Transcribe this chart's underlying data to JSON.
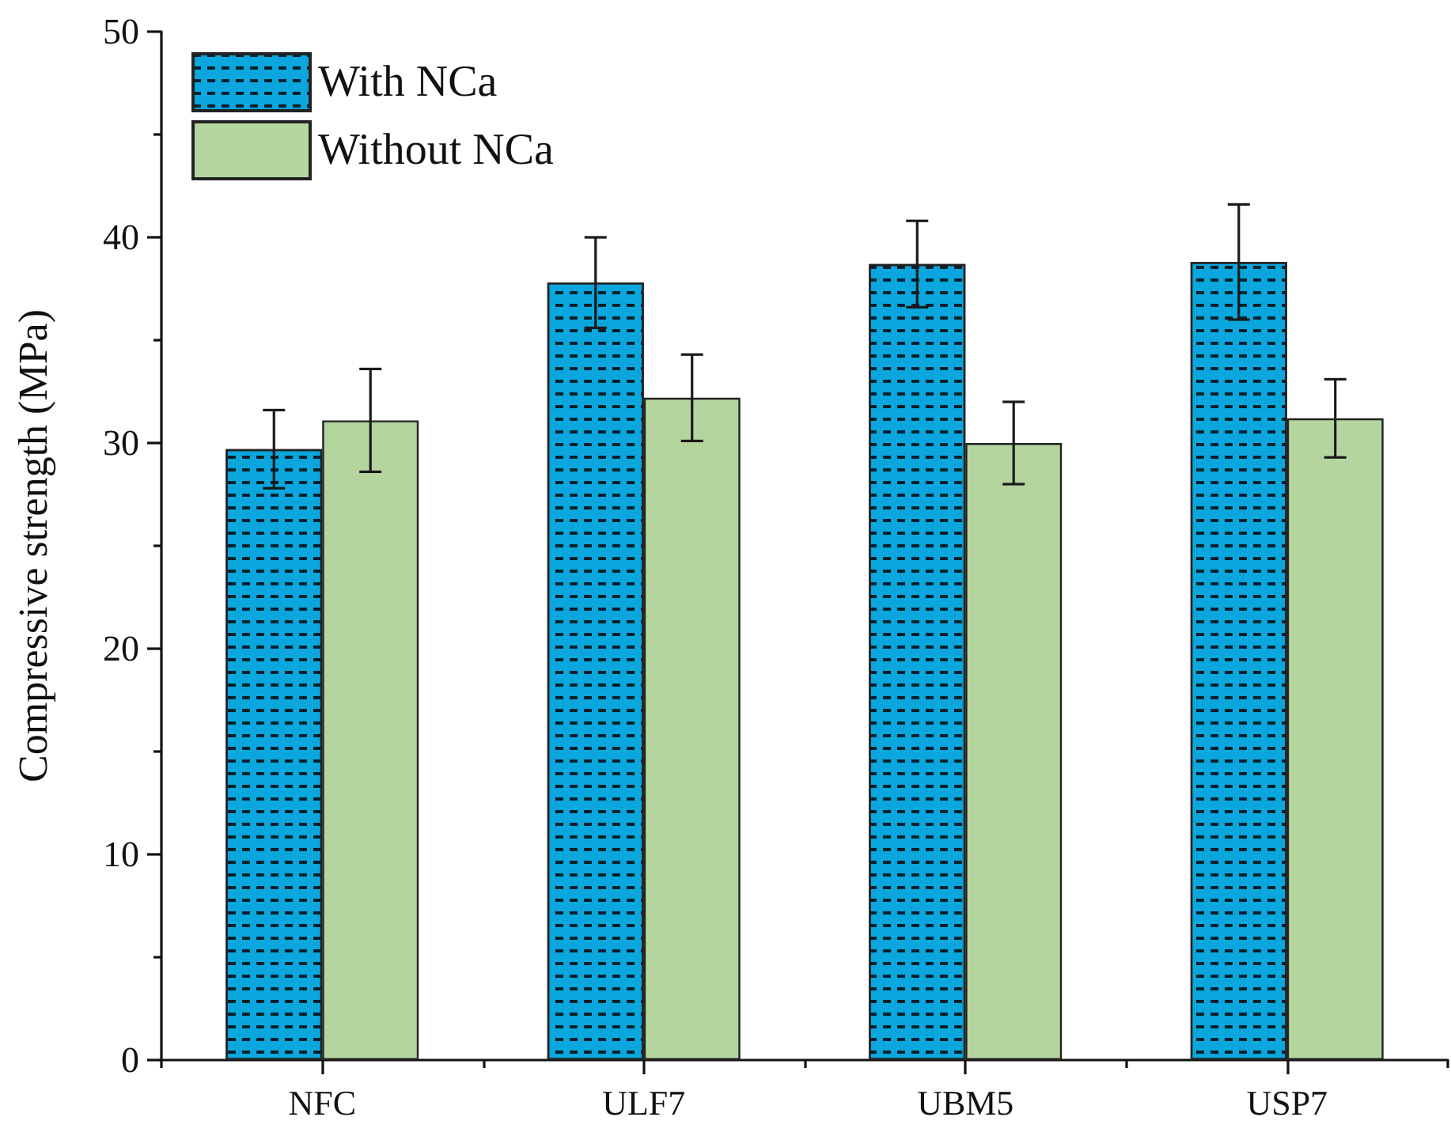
{
  "chart_data": {
    "type": "bar",
    "ylabel": "Compressive strength (MPa)",
    "categories": [
      "NFC",
      "ULF7",
      "UBM5",
      "USP7"
    ],
    "series": [
      {
        "name": "With NCa",
        "color": "#0aa6dd",
        "values": [
          29.7,
          37.8,
          38.7,
          38.8
        ],
        "errors": [
          1.9,
          2.2,
          2.1,
          2.8
        ]
      },
      {
        "name": "Without NCa",
        "color": "#b5d59e",
        "values": [
          31.1,
          32.2,
          30.0,
          31.2
        ],
        "errors": [
          2.5,
          2.1,
          2.0,
          1.9
        ]
      }
    ],
    "ylim": [
      0,
      50
    ],
    "yticks": [
      0,
      {
        "value": 5,
        "label": null
      },
      10,
      {
        "value": 15,
        "label": null
      },
      20,
      {
        "value": 25,
        "label": null
      },
      30,
      {
        "value": 35,
        "label": null
      },
      40,
      {
        "value": 45,
        "label": null
      },
      50
    ],
    "grid": false,
    "legend": "top left"
  }
}
